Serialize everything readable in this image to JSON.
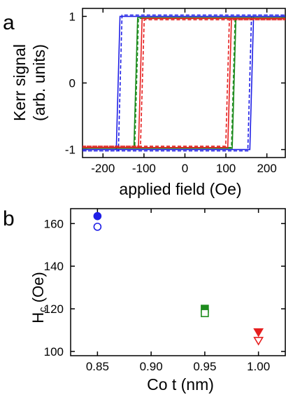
{
  "panels": {
    "a": {
      "letter": "a"
    },
    "b": {
      "letter": "b"
    }
  },
  "colors": {
    "blue": "#1f1fe6",
    "green": "#1e8c1e",
    "red": "#e61e1e"
  },
  "chart_data": [
    {
      "type": "line",
      "panel": "a",
      "ylabel_line1": "Kerr signal",
      "ylabel_line2": "(arb. units)",
      "xlabel": "applied field (Oe)",
      "xlim": [
        -250,
        245
      ],
      "ylim": [
        -1.12,
        1.12
      ],
      "xticks": [
        -200,
        -100,
        0,
        100,
        200
      ],
      "yticks": [
        -1,
        0,
        1
      ],
      "grid": false,
      "legend": "none",
      "series": [
        {
          "color": "blue",
          "style": "solid",
          "coercivity": 163,
          "amplitude": 1.0
        },
        {
          "color": "blue",
          "style": "dashed",
          "coercivity": 158,
          "amplitude": 1.02
        },
        {
          "color": "green",
          "style": "solid",
          "coercivity": 120,
          "amplitude": 0.98
        },
        {
          "color": "green",
          "style": "dashed",
          "coercivity": 118,
          "amplitude": 0.97
        },
        {
          "color": "red",
          "style": "solid",
          "coercivity": 109,
          "amplitude": 0.97
        },
        {
          "color": "red",
          "style": "dashed",
          "coercivity": 104,
          "amplitude": 0.95
        }
      ]
    },
    {
      "type": "scatter",
      "panel": "b",
      "ylabel_main": "H",
      "ylabel_sub": "c",
      "ylabel_unit": " (Oe)",
      "xlabel": "Co t (nm)",
      "xlim": [
        0.825,
        1.025
      ],
      "ylim": [
        98,
        167
      ],
      "xticks": [
        "0.85",
        "0.90",
        "0.95",
        "1.00"
      ],
      "yticks": [
        100,
        120,
        140,
        160
      ],
      "grid": false,
      "legend": "none",
      "points": [
        {
          "x": 0.85,
          "y": 163.5,
          "marker": "circle",
          "filled": true,
          "color": "blue"
        },
        {
          "x": 0.85,
          "y": 158.5,
          "marker": "circle",
          "filled": false,
          "color": "blue"
        },
        {
          "x": 0.95,
          "y": 120,
          "marker": "square",
          "filled": true,
          "color": "green"
        },
        {
          "x": 0.95,
          "y": 118,
          "marker": "square",
          "filled": false,
          "color": "green"
        },
        {
          "x": 1.0,
          "y": 109,
          "marker": "triangle",
          "filled": true,
          "color": "red"
        },
        {
          "x": 1.0,
          "y": 105,
          "marker": "triangle",
          "filled": false,
          "color": "red"
        }
      ]
    }
  ]
}
